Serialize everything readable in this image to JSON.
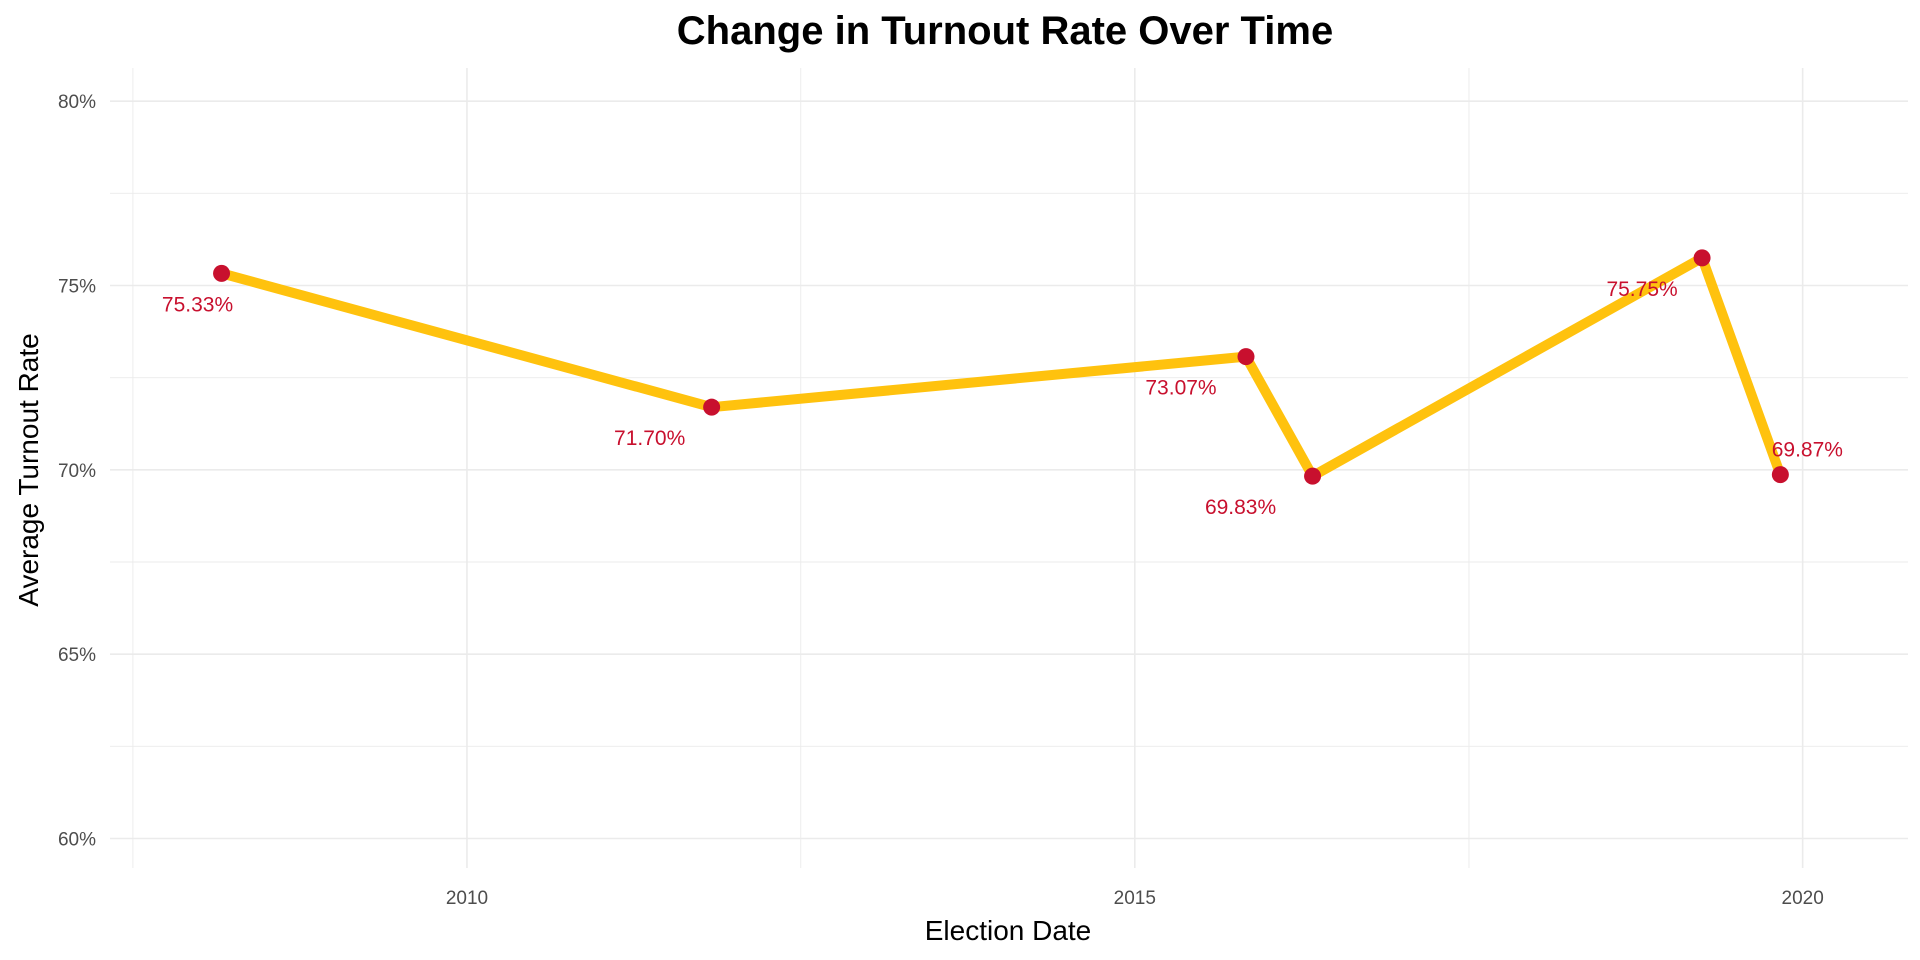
{
  "chart_data": {
    "type": "line",
    "title": "Change in Turnout Rate Over Time",
    "xlabel": "Election Date",
    "ylabel": "Average Turnout Rate",
    "x_ticks": [
      "2010",
      "2015",
      "2020"
    ],
    "y_ticks": [
      "60%",
      "65%",
      "70%",
      "75%",
      "80%"
    ],
    "xlim": [
      "2007-05-01",
      "2020-10-15"
    ],
    "ylim": [
      59.2,
      80.9
    ],
    "grid": true,
    "legend": "none",
    "series": [
      {
        "points": [
          {
            "x": "2008-03-01",
            "y": 75.33,
            "label": "75.33%"
          },
          {
            "x": "2011-11-01",
            "y": 71.7,
            "label": "71.70%"
          },
          {
            "x": "2015-11-01",
            "y": 73.07,
            "label": "73.07%"
          },
          {
            "x": "2016-05-01",
            "y": 69.83,
            "label": "69.83%"
          },
          {
            "x": "2019-04-01",
            "y": 75.75,
            "label": "75.75%"
          },
          {
            "x": "2019-11-01",
            "y": 69.87,
            "label": "69.87%"
          }
        ]
      }
    ],
    "colors": {
      "line": "#FFC20E",
      "point": "#C8102E",
      "label": "#C8102E",
      "grid": "#EBEBEB"
    }
  }
}
